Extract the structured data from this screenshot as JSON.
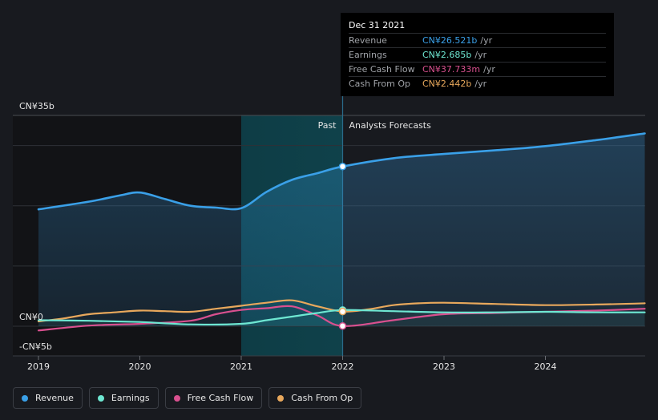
{
  "tooltip": {
    "date": "Dec 31 2021",
    "rows": [
      {
        "label": "Revenue",
        "value": "CN¥26.521b",
        "unit": "/yr",
        "color": "#3aa0e8"
      },
      {
        "label": "Earnings",
        "value": "CN¥2.685b",
        "unit": "/yr",
        "color": "#6ee7d2"
      },
      {
        "label": "Free Cash Flow",
        "value": "CN¥37.733m",
        "unit": "/yr",
        "color": "#d9508f"
      },
      {
        "label": "Cash From Op",
        "value": "CN¥2.442b",
        "unit": "/yr",
        "color": "#e8a85c"
      }
    ]
  },
  "legend": [
    {
      "label": "Revenue",
      "color": "#3aa0e8"
    },
    {
      "label": "Earnings",
      "color": "#6ee7d2"
    },
    {
      "label": "Free Cash Flow",
      "color": "#d9508f"
    },
    {
      "label": "Cash From Op",
      "color": "#e8a85c"
    }
  ],
  "chart_data": {
    "type": "line",
    "title": "",
    "divider_labels": {
      "past": "Past",
      "forecast": "Analysts Forecasts"
    },
    "divider_x": 2022.0,
    "highlight_range": [
      2021.0,
      2022.0
    ],
    "xlim": [
      2018.78,
      2024.98
    ],
    "ylim": [
      -5,
      35
    ],
    "x_ticks": [
      2019,
      2020,
      2021,
      2022,
      2023,
      2024
    ],
    "x_tick_labels": [
      "2019",
      "2020",
      "2021",
      "2022",
      "2023",
      "2024"
    ],
    "y_tick_labels": [
      {
        "value": 35,
        "label": "CN¥35b"
      },
      {
        "value": 0,
        "label": "CN¥0"
      },
      {
        "value": -5,
        "label": "-CN¥5b"
      }
    ],
    "gridlines": [
      35,
      30,
      20,
      10,
      0
    ],
    "series": [
      {
        "name": "Revenue",
        "unit": "CN¥b",
        "color": "#3aa0e8",
        "fill": true,
        "points": [
          [
            2019.0,
            19.4
          ],
          [
            2019.5,
            20.7
          ],
          [
            2019.8,
            21.7
          ],
          [
            2020.0,
            22.2
          ],
          [
            2020.25,
            21.1
          ],
          [
            2020.5,
            20.0
          ],
          [
            2020.75,
            19.7
          ],
          [
            2021.0,
            19.6
          ],
          [
            2021.25,
            22.3
          ],
          [
            2021.5,
            24.3
          ],
          [
            2021.75,
            25.4
          ],
          [
            2022.0,
            26.521
          ],
          [
            2022.5,
            27.9
          ],
          [
            2023.0,
            28.6
          ],
          [
            2023.5,
            29.2
          ],
          [
            2024.0,
            29.9
          ],
          [
            2024.5,
            30.9
          ],
          [
            2024.98,
            32.0
          ]
        ]
      },
      {
        "name": "Earnings",
        "unit": "CN¥b",
        "color": "#6ee7d2",
        "fill": false,
        "points": [
          [
            2019.0,
            1.0
          ],
          [
            2019.5,
            0.9
          ],
          [
            2020.0,
            0.7
          ],
          [
            2020.5,
            0.3
          ],
          [
            2021.0,
            0.4
          ],
          [
            2021.25,
            1.0
          ],
          [
            2021.5,
            1.6
          ],
          [
            2021.75,
            2.2
          ],
          [
            2022.0,
            2.685
          ],
          [
            2022.5,
            2.5
          ],
          [
            2023.0,
            2.3
          ],
          [
            2023.5,
            2.3
          ],
          [
            2024.0,
            2.4
          ],
          [
            2024.5,
            2.3
          ],
          [
            2024.98,
            2.3
          ]
        ]
      },
      {
        "name": "Free Cash Flow",
        "unit": "CN¥b",
        "color": "#d9508f",
        "fill": false,
        "points": [
          [
            2019.0,
            -0.7
          ],
          [
            2019.5,
            0.1
          ],
          [
            2020.0,
            0.4
          ],
          [
            2020.5,
            0.9
          ],
          [
            2020.75,
            2.0
          ],
          [
            2021.0,
            2.7
          ],
          [
            2021.25,
            3.0
          ],
          [
            2021.5,
            3.3
          ],
          [
            2021.75,
            1.8
          ],
          [
            2022.0,
            0.038
          ],
          [
            2022.5,
            1.0
          ],
          [
            2023.0,
            2.0
          ],
          [
            2023.5,
            2.2
          ],
          [
            2024.0,
            2.4
          ],
          [
            2024.5,
            2.6
          ],
          [
            2024.98,
            2.9
          ]
        ]
      },
      {
        "name": "Cash From Op",
        "unit": "CN¥b",
        "color": "#e8a85c",
        "fill": false,
        "points": [
          [
            2019.0,
            0.8
          ],
          [
            2019.25,
            1.3
          ],
          [
            2019.5,
            2.0
          ],
          [
            2019.75,
            2.3
          ],
          [
            2020.0,
            2.6
          ],
          [
            2020.25,
            2.5
          ],
          [
            2020.5,
            2.4
          ],
          [
            2020.75,
            2.9
          ],
          [
            2021.0,
            3.4
          ],
          [
            2021.25,
            3.9
          ],
          [
            2021.5,
            4.3
          ],
          [
            2021.75,
            3.3
          ],
          [
            2022.0,
            2.442
          ],
          [
            2022.25,
            2.8
          ],
          [
            2022.5,
            3.5
          ],
          [
            2022.75,
            3.8
          ],
          [
            2023.0,
            3.9
          ],
          [
            2023.5,
            3.7
          ],
          [
            2024.0,
            3.5
          ],
          [
            2024.5,
            3.6
          ],
          [
            2024.98,
            3.8
          ]
        ]
      }
    ]
  }
}
